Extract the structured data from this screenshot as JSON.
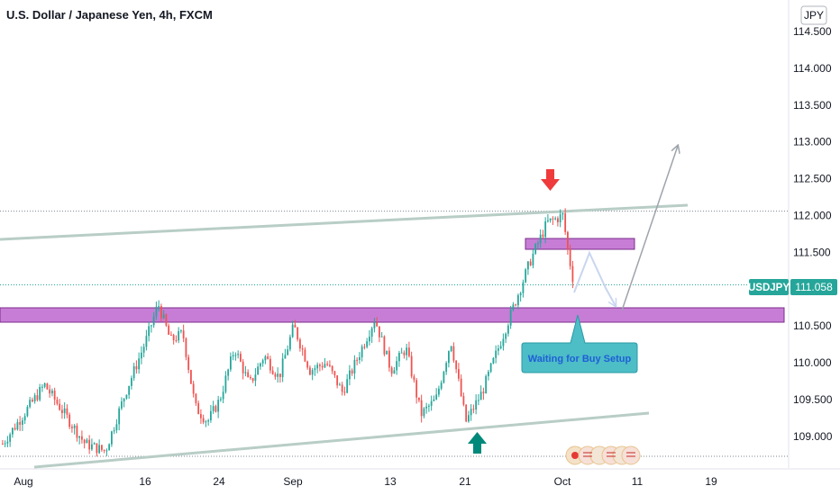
{
  "header": {
    "title": "U.S. Dollar / Japanese Yen, 4h, FXCM"
  },
  "currency_badge": "JPY",
  "price_tag": {
    "symbol": "USDJPY",
    "value": "111.058"
  },
  "annotation": {
    "text": "Waiting for Buy Setup"
  },
  "colors": {
    "up": "#26a69a",
    "down": "#ef5350",
    "zone": "#c77dd6",
    "zone_border": "#7b2d8b",
    "trendline": "#b8cdc6",
    "callout": "#4dbdc6",
    "callout_text": "#1f5fd6",
    "arrow_red": "#ef3b3b",
    "arrow_green": "#00897b",
    "price_tag": "#26a69a"
  },
  "chart_data": {
    "type": "candlestick",
    "title": "U.S. Dollar / Japanese Yen, 4h, FXCM",
    "ylim": [
      108.7,
      114.7
    ],
    "y_ticks": [
      "114.500",
      "114.000",
      "113.500",
      "113.000",
      "112.500",
      "112.000",
      "111.500",
      "110.500",
      "110.000",
      "109.500",
      "109.000"
    ],
    "x_ticks": [
      "Aug",
      "16",
      "24",
      "Sep",
      "13",
      "21",
      "Oct",
      "11",
      "19"
    ],
    "anchors": [
      [
        "Aug",
        108.9
      ],
      [
        "Aug",
        109.7
      ],
      [
        "Aug",
        109.3
      ],
      [
        "Aug",
        108.9
      ],
      [
        "Aug",
        108.8
      ],
      [
        "Aug",
        109.6
      ],
      [
        "16",
        110.3
      ],
      [
        "16",
        110.8
      ],
      [
        "16",
        110.3
      ],
      [
        "16",
        110.4
      ],
      [
        "16",
        109.4
      ],
      [
        "16",
        109.2
      ],
      [
        "24",
        109.5
      ],
      [
        "24",
        110.2
      ],
      [
        "24",
        109.7
      ],
      [
        "24",
        110.1
      ],
      [
        "24",
        109.8
      ],
      [
        "Sep",
        110.5
      ],
      [
        "Sep",
        109.9
      ],
      [
        "Sep",
        110.0
      ],
      [
        "Sep",
        109.6
      ],
      [
        "Sep",
        110.1
      ],
      [
        "Sep",
        110.6
      ],
      [
        "13",
        109.9
      ],
      [
        "13",
        110.2
      ],
      [
        "13",
        109.3
      ],
      [
        "13",
        109.5
      ],
      [
        "13",
        110.3
      ],
      [
        "21",
        109.2
      ],
      [
        "21",
        109.6
      ],
      [
        "21",
        110.2
      ],
      [
        "21",
        110.8
      ],
      [
        "21",
        111.4
      ],
      [
        "21",
        111.9
      ],
      [
        "Oct",
        112.0
      ],
      [
        "Oct",
        111.6
      ],
      [
        "Oct",
        111.06
      ]
    ],
    "current_price": 111.058,
    "last_date": "Oct",
    "levels": [
      112.06,
      111.058,
      108.73
    ]
  }
}
